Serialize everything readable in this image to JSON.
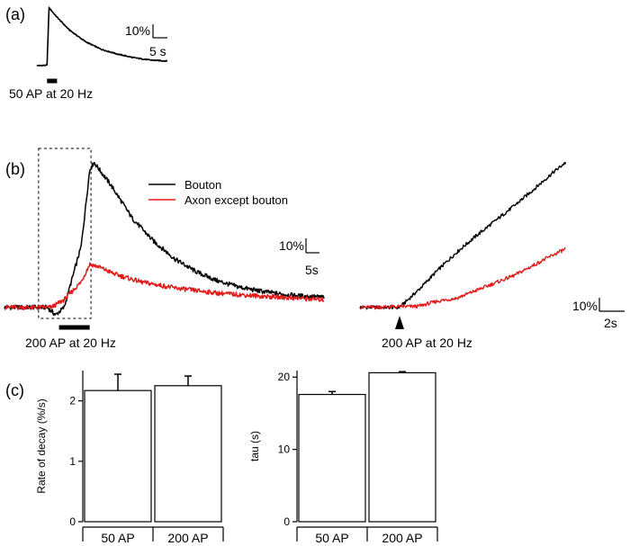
{
  "panels": {
    "a": "(a)",
    "b": "(b)",
    "c": "(c)"
  },
  "colors": {
    "bouton": "#000000",
    "axon": "#e31a1c",
    "bar_fill": "#ffffff"
  },
  "chart_data": [
    {
      "id": "panel-a",
      "type": "line",
      "title": "",
      "series": [
        {
          "name": "Bouton",
          "color": "#000000",
          "x": [
            0,
            2.5,
            3,
            5,
            8,
            12,
            16,
            20,
            24,
            28,
            32.5
          ],
          "y": [
            0,
            0.3,
            37,
            31,
            23,
            15.5,
            10.5,
            7.5,
            5.2,
            3.7,
            3.0
          ]
        }
      ],
      "xlim": [
        -7,
        33
      ],
      "ylim": [
        -4,
        38
      ],
      "stimulus": {
        "start": 2.5,
        "end": 5.0,
        "label": "50 AP at 20 Hz"
      },
      "scalebar": {
        "y_label": "10%",
        "x_label": "5 s",
        "y_value": 10,
        "x_value": 5
      }
    },
    {
      "id": "panel-b-left",
      "type": "line",
      "series": [
        {
          "name": "Bouton",
          "color": "#000000",
          "x": [
            0,
            10,
            12,
            14,
            18,
            20,
            21,
            25,
            30,
            35,
            40,
            45,
            50,
            55,
            60,
            65,
            70,
            75
          ],
          "y": [
            0,
            0,
            -1.5,
            0,
            12,
            27,
            28.5,
            24,
            17.5,
            13,
            9.5,
            7,
            5.2,
            4,
            3.2,
            2.6,
            2.2,
            2
          ]
        },
        {
          "name": "Axon except bouton",
          "color": "#e31a1c",
          "x": [
            0,
            11,
            14,
            18,
            20,
            22,
            26,
            32,
            40,
            50,
            60,
            75
          ],
          "y": [
            0,
            0,
            1.5,
            5,
            8.5,
            8,
            6.5,
            5,
            3.8,
            2.8,
            2.2,
            1.5
          ]
        }
      ],
      "xlim": [
        0,
        75
      ],
      "ylim": [
        -2,
        30
      ],
      "highlight": {
        "x_start": 8.0,
        "x_end": 20.3
      },
      "stimulus": {
        "start": 12.8,
        "end": 20.0,
        "label": "200 AP at 20 Hz"
      },
      "scalebar": {
        "y_label": "10%",
        "x_label": "5s",
        "y_value": 10,
        "x_value": 5
      }
    },
    {
      "id": "panel-b-right",
      "type": "line",
      "series": [
        {
          "name": "Bouton",
          "color": "#000000",
          "x": [
            0,
            2.05,
            3,
            4,
            5,
            6,
            7,
            8,
            9,
            10,
            10.65
          ],
          "y": [
            0,
            0,
            3.3,
            7.2,
            10.8,
            14,
            17,
            20,
            23.2,
            26.5,
            28.5
          ]
        },
        {
          "name": "Axon except bouton",
          "color": "#e31a1c",
          "x": [
            0,
            3,
            4,
            5,
            6,
            7,
            8,
            9,
            10,
            10.65
          ],
          "y": [
            0,
            0.2,
            1.2,
            1.8,
            3.3,
            4.8,
            6.3,
            8.3,
            10.3,
            11.5
          ]
        }
      ],
      "xlim": [
        0,
        11
      ],
      "ylim": [
        -2,
        30
      ],
      "stimulus": {
        "marker": "arrowhead",
        "at": 2.05,
        "label": "200 AP at 20 Hz"
      },
      "scalebar": {
        "y_label": "10%",
        "x_label": "2s",
        "y_value": 10,
        "x_value": 2
      }
    },
    {
      "id": "panel-c-left",
      "type": "bar",
      "categories": [
        "50 AP",
        "200 AP"
      ],
      "values": [
        2.17,
        2.25
      ],
      "errors": [
        0.27,
        0.16
      ],
      "ylabel": "Rate of decay (%/s)",
      "ylim": [
        0,
        2.5
      ],
      "yticks": [
        0,
        1,
        2
      ]
    },
    {
      "id": "panel-c-right",
      "type": "bar",
      "categories": [
        "50 AP",
        "200 AP"
      ],
      "values": [
        17.6,
        20.6
      ],
      "errors": [
        0.4,
        0.15
      ],
      "ylabel": "tau (s)",
      "ylim": [
        0,
        20.9
      ],
      "yticks": [
        0,
        10,
        20
      ]
    }
  ]
}
